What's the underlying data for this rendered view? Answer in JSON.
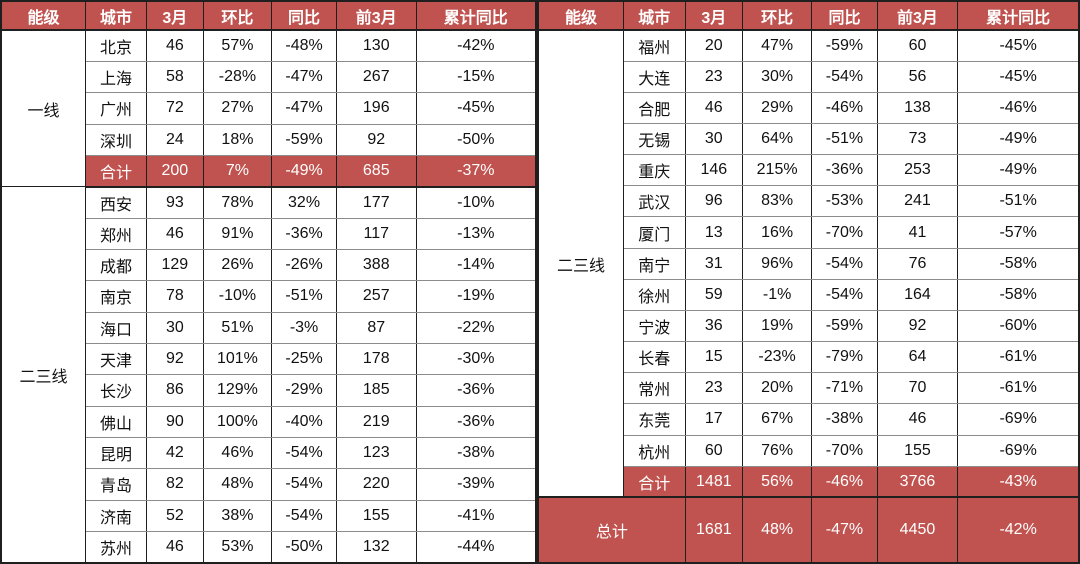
{
  "chart_data": {
    "type": "table",
    "columns": [
      "能级",
      "城市",
      "3月",
      "环比",
      "同比",
      "前3月",
      "累计同比"
    ],
    "colors": {
      "accent": "#c0534f",
      "header_text": "#ffffff",
      "body_text": "#111111",
      "grid_dark": "#1f1f1f",
      "grid_light": "#8c8c8c"
    },
    "tables": [
      {
        "position": "left",
        "groups": [
          {
            "tier": "一线",
            "cities": [
              {
                "city": "北京",
                "values": [
                  "46",
                  "57%",
                  "-48%",
                  "130",
                  "-42%"
                ]
              },
              {
                "city": "上海",
                "values": [
                  "58",
                  "-28%",
                  "-47%",
                  "267",
                  "-15%"
                ]
              },
              {
                "city": "广州",
                "values": [
                  "72",
                  "27%",
                  "-47%",
                  "196",
                  "-45%"
                ]
              },
              {
                "city": "深圳",
                "values": [
                  "24",
                  "18%",
                  "-59%",
                  "92",
                  "-50%"
                ]
              }
            ],
            "subtotal": {
              "label": "合计",
              "values": [
                "200",
                "7%",
                "-49%",
                "685",
                "-37%"
              ]
            }
          },
          {
            "tier": "二三线",
            "cities": [
              {
                "city": "西安",
                "values": [
                  "93",
                  "78%",
                  "32%",
                  "177",
                  "-10%"
                ]
              },
              {
                "city": "郑州",
                "values": [
                  "46",
                  "91%",
                  "-36%",
                  "117",
                  "-13%"
                ]
              },
              {
                "city": "成都",
                "values": [
                  "129",
                  "26%",
                  "-26%",
                  "388",
                  "-14%"
                ]
              },
              {
                "city": "南京",
                "values": [
                  "78",
                  "-10%",
                  "-51%",
                  "257",
                  "-19%"
                ]
              },
              {
                "city": "海口",
                "values": [
                  "30",
                  "51%",
                  "-3%",
                  "87",
                  "-22%"
                ]
              },
              {
                "city": "天津",
                "values": [
                  "92",
                  "101%",
                  "-25%",
                  "178",
                  "-30%"
                ]
              },
              {
                "city": "长沙",
                "values": [
                  "86",
                  "129%",
                  "-29%",
                  "185",
                  "-36%"
                ]
              },
              {
                "city": "佛山",
                "values": [
                  "90",
                  "100%",
                  "-40%",
                  "219",
                  "-36%"
                ]
              },
              {
                "city": "昆明",
                "values": [
                  "42",
                  "46%",
                  "-54%",
                  "123",
                  "-38%"
                ]
              },
              {
                "city": "青岛",
                "values": [
                  "82",
                  "48%",
                  "-54%",
                  "220",
                  "-39%"
                ]
              },
              {
                "city": "济南",
                "values": [
                  "52",
                  "38%",
                  "-54%",
                  "155",
                  "-41%"
                ]
              },
              {
                "city": "苏州",
                "values": [
                  "46",
                  "53%",
                  "-50%",
                  "132",
                  "-44%"
                ]
              }
            ]
          }
        ]
      },
      {
        "position": "right",
        "groups": [
          {
            "tier": "二三线",
            "cities": [
              {
                "city": "福州",
                "values": [
                  "20",
                  "47%",
                  "-59%",
                  "60",
                  "-45%"
                ]
              },
              {
                "city": "大连",
                "values": [
                  "23",
                  "30%",
                  "-54%",
                  "56",
                  "-45%"
                ]
              },
              {
                "city": "合肥",
                "values": [
                  "46",
                  "29%",
                  "-46%",
                  "138",
                  "-46%"
                ]
              },
              {
                "city": "无锡",
                "values": [
                  "30",
                  "64%",
                  "-51%",
                  "73",
                  "-49%"
                ]
              },
              {
                "city": "重庆",
                "values": [
                  "146",
                  "215%",
                  "-36%",
                  "253",
                  "-49%"
                ]
              },
              {
                "city": "武汉",
                "values": [
                  "96",
                  "83%",
                  "-53%",
                  "241",
                  "-51%"
                ]
              },
              {
                "city": "厦门",
                "values": [
                  "13",
                  "16%",
                  "-70%",
                  "41",
                  "-57%"
                ]
              },
              {
                "city": "南宁",
                "values": [
                  "31",
                  "96%",
                  "-54%",
                  "76",
                  "-58%"
                ]
              },
              {
                "city": "徐州",
                "values": [
                  "59",
                  "-1%",
                  "-54%",
                  "164",
                  "-58%"
                ]
              },
              {
                "city": "宁波",
                "values": [
                  "36",
                  "19%",
                  "-59%",
                  "92",
                  "-60%"
                ]
              },
              {
                "city": "长春",
                "values": [
                  "15",
                  "-23%",
                  "-79%",
                  "64",
                  "-61%"
                ]
              },
              {
                "city": "常州",
                "values": [
                  "23",
                  "20%",
                  "-71%",
                  "70",
                  "-61%"
                ]
              },
              {
                "city": "东莞",
                "values": [
                  "17",
                  "67%",
                  "-38%",
                  "46",
                  "-69%"
                ]
              },
              {
                "city": "杭州",
                "values": [
                  "60",
                  "76%",
                  "-70%",
                  "155",
                  "-69%"
                ]
              }
            ],
            "subtotal": {
              "label": "合计",
              "values": [
                "1481",
                "56%",
                "-46%",
                "3766",
                "-43%"
              ]
            }
          }
        ],
        "grand_total": {
          "label": "总计",
          "values": [
            "1681",
            "48%",
            "-47%",
            "4450",
            "-42%"
          ]
        }
      }
    ]
  }
}
